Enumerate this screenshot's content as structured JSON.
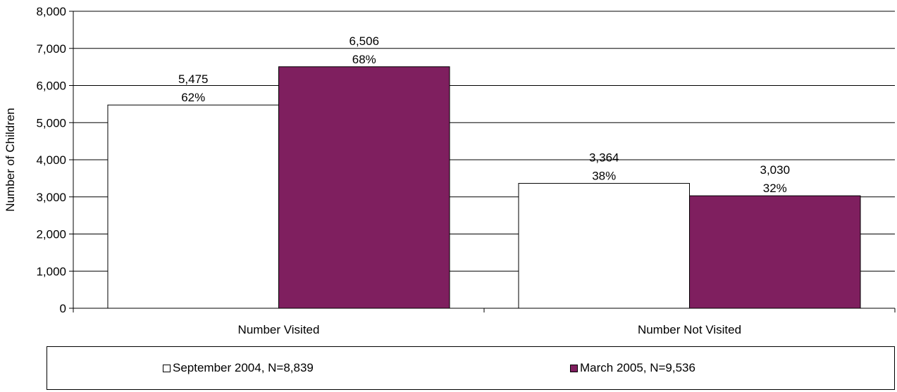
{
  "chart_data": {
    "type": "bar",
    "categories": [
      "Number Visited",
      "Number Not Visited"
    ],
    "series": [
      {
        "name": "September 2004, N=8,839",
        "color": "#ffffff",
        "values": [
          5475,
          3364
        ],
        "labels": [
          "5,475",
          "3,364"
        ],
        "percents": [
          "62%",
          "38%"
        ]
      },
      {
        "name": "March 2005, N=9,536",
        "color": "#7f1f5f",
        "values": [
          6506,
          3030
        ],
        "labels": [
          "6,506",
          "3,030"
        ],
        "percents": [
          "68%",
          "32%"
        ]
      }
    ],
    "ylabel": "Number of Children",
    "xlabel": "",
    "ylim": [
      0,
      8000
    ],
    "yticks": [
      0,
      1000,
      2000,
      3000,
      4000,
      5000,
      6000,
      7000,
      8000
    ],
    "ytick_labels": [
      "0",
      "1,000",
      "2,000",
      "3,000",
      "4,000",
      "5,000",
      "6,000",
      "7,000",
      "8,000"
    ],
    "grid": true,
    "legend_position": "bottom"
  }
}
